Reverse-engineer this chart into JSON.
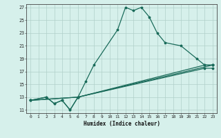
{
  "title": "",
  "xlabel": "Humidex (Indice chaleur)",
  "background_color": "#d6f0eb",
  "grid_color": "#b0cfc9",
  "line_color": "#1a6b5a",
  "xlim": [
    -0.5,
    23.5
  ],
  "ylim": [
    10.5,
    27.5
  ],
  "yticks": [
    11,
    13,
    15,
    17,
    19,
    21,
    23,
    25,
    27
  ],
  "xticks": [
    0,
    1,
    2,
    3,
    4,
    5,
    6,
    7,
    8,
    9,
    10,
    11,
    12,
    13,
    14,
    15,
    16,
    17,
    18,
    19,
    20,
    21,
    22,
    23
  ],
  "s0x": [
    0,
    2,
    3,
    4,
    5,
    6,
    7,
    8,
    11,
    12,
    13,
    14,
    15,
    16,
    17,
    19,
    21,
    22,
    23
  ],
  "s0y": [
    12.5,
    13,
    12,
    12.5,
    11,
    13,
    15.5,
    18,
    23.5,
    27,
    26.5,
    27,
    25.5,
    23,
    21.5,
    21,
    19,
    18,
    18
  ],
  "s1x": [
    0,
    2,
    3,
    4,
    5,
    6,
    22,
    23
  ],
  "s1y": [
    12.5,
    13,
    12,
    12.5,
    11,
    13,
    18,
    18
  ],
  "s2x": [
    0,
    6,
    22,
    23
  ],
  "s2y": [
    12.5,
    13,
    17.5,
    17.5
  ],
  "s3x": [
    0,
    6,
    23
  ],
  "s3y": [
    12.5,
    13,
    18
  ]
}
